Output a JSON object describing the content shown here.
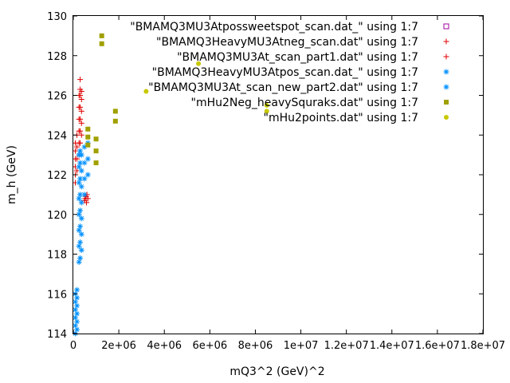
{
  "chart_data": {
    "type": "scatter",
    "xlabel": "mQ3^2 (GeV)^2",
    "ylabel": "m_h (GeV)",
    "xlim": [
      0,
      18000000
    ],
    "ylim": [
      114,
      130
    ],
    "grid": false,
    "legend_position": "top-right",
    "x_ticks": [
      {
        "value": 0,
        "label": "0"
      },
      {
        "value": 2000000,
        "label": "2e+06"
      },
      {
        "value": 4000000,
        "label": "4e+06"
      },
      {
        "value": 6000000,
        "label": "6e+06"
      },
      {
        "value": 8000000,
        "label": "8e+06"
      },
      {
        "value": 10000000,
        "label": "1e+07"
      },
      {
        "value": 12000000,
        "label": "1.2e+07"
      },
      {
        "value": 14000000,
        "label": "1.4e+07"
      },
      {
        "value": 16000000,
        "label": "1.6e+07"
      },
      {
        "value": 18000000,
        "label": "1.8e+07"
      }
    ],
    "y_ticks": [
      {
        "value": 114,
        "label": "114"
      },
      {
        "value": 116,
        "label": "116"
      },
      {
        "value": 118,
        "label": "118"
      },
      {
        "value": 120,
        "label": "120"
      },
      {
        "value": 122,
        "label": "122"
      },
      {
        "value": 124,
        "label": "124"
      },
      {
        "value": 126,
        "label": "126"
      },
      {
        "value": 128,
        "label": "128"
      },
      {
        "value": 130,
        "label": "130"
      }
    ],
    "series": [
      {
        "name": "\"BMAMQ3MU3Atpossweetspot_scan.dat_\" using 1:7",
        "marker": "open-square",
        "color": "#a000a0",
        "points": []
      },
      {
        "name": "\"BMAMQ3HeavyMU3Atneg_scan.dat\" using 1:7",
        "marker": "plus",
        "color": "#e00000",
        "points": [
          [
            90000,
            121.6
          ],
          [
            90000,
            122.0
          ],
          [
            90000,
            122.4
          ],
          [
            90000,
            122.8
          ],
          [
            90000,
            123.2
          ],
          [
            90000,
            123.6
          ],
          [
            160000,
            122.2
          ],
          [
            160000,
            122.8
          ],
          [
            160000,
            123.4
          ],
          [
            160000,
            124.0
          ],
          [
            250000,
            123.0
          ],
          [
            250000,
            123.6
          ],
          [
            250000,
            124.2
          ],
          [
            250000,
            124.8
          ],
          [
            250000,
            125.4
          ],
          [
            250000,
            126.0
          ],
          [
            300000,
            123.6
          ],
          [
            300000,
            124.2
          ],
          [
            300000,
            124.8
          ],
          [
            300000,
            125.4
          ],
          [
            300000,
            126.0
          ],
          [
            300000,
            126.3
          ],
          [
            300000,
            126.8
          ],
          [
            360000,
            124.0
          ],
          [
            360000,
            124.6
          ],
          [
            360000,
            125.2
          ],
          [
            360000,
            125.8
          ],
          [
            360000,
            126.2
          ]
        ]
      },
      {
        "name": "\"BMAMQ3MU3At_scan_part1.dat\" using 1:7",
        "marker": "plus",
        "color": "#e00000",
        "points": [
          [
            490000,
            120.7
          ],
          [
            520000,
            120.8
          ],
          [
            560000,
            120.9
          ],
          [
            600000,
            121.0
          ],
          [
            640000,
            120.8
          ],
          [
            580000,
            120.6
          ]
        ]
      },
      {
        "name": "\"BMAMQ3HeavyMU3Atpos_scan.dat_\" using 1:7",
        "marker": "star",
        "color": "#0090ff",
        "points": [
          [
            90000,
            114.0
          ],
          [
            90000,
            114.4
          ],
          [
            90000,
            114.8
          ],
          [
            90000,
            115.2
          ],
          [
            90000,
            115.6
          ],
          [
            90000,
            116.0
          ],
          [
            160000,
            114.2
          ],
          [
            160000,
            114.6
          ],
          [
            160000,
            115.0
          ],
          [
            160000,
            115.4
          ],
          [
            160000,
            115.8
          ],
          [
            160000,
            116.2
          ],
          [
            250000,
            117.6
          ],
          [
            250000,
            118.4
          ],
          [
            250000,
            119.2
          ],
          [
            250000,
            120.0
          ],
          [
            250000,
            120.8
          ],
          [
            250000,
            121.6
          ],
          [
            250000,
            122.4
          ],
          [
            250000,
            123.0
          ],
          [
            300000,
            117.8
          ],
          [
            300000,
            118.6
          ],
          [
            300000,
            119.4
          ],
          [
            300000,
            120.2
          ],
          [
            300000,
            121.0
          ],
          [
            300000,
            121.8
          ],
          [
            300000,
            122.6
          ],
          [
            300000,
            123.2
          ],
          [
            360000,
            118.2
          ],
          [
            360000,
            119.0
          ],
          [
            360000,
            119.8
          ],
          [
            360000,
            120.6
          ],
          [
            360000,
            121.4
          ],
          [
            360000,
            122.2
          ],
          [
            360000,
            123.0
          ],
          [
            490000,
            121.0
          ],
          [
            490000,
            121.8
          ],
          [
            490000,
            122.6
          ],
          [
            490000,
            123.4
          ],
          [
            640000,
            122.0
          ],
          [
            640000,
            122.8
          ],
          [
            640000,
            123.6
          ]
        ]
      },
      {
        "name": "\"BMAMQ3MU3At_scan_new_part2.dat\" using 1:7",
        "marker": "star",
        "color": "#0090ff",
        "points": []
      },
      {
        "name": "\"mHu2Neg_heavySquraks.dat\" using 1:7",
        "marker": "filled-square",
        "color": "#a0a000",
        "points": [
          [
            640000,
            123.5
          ],
          [
            640000,
            123.9
          ],
          [
            640000,
            124.3
          ],
          [
            1000000,
            122.6
          ],
          [
            1000000,
            123.2
          ],
          [
            1000000,
            123.8
          ],
          [
            1250000,
            128.6
          ],
          [
            1250000,
            129.0
          ],
          [
            1850000,
            124.7
          ],
          [
            1850000,
            125.2
          ]
        ]
      },
      {
        "name": "\"mHu2points.dat\" using 1:7",
        "marker": "filled-circle",
        "color": "#c8c800",
        "points": [
          [
            3200000,
            126.2
          ],
          [
            5500000,
            127.6
          ],
          [
            8500000,
            125.2
          ],
          [
            8500000,
            125.5
          ]
        ]
      }
    ]
  }
}
